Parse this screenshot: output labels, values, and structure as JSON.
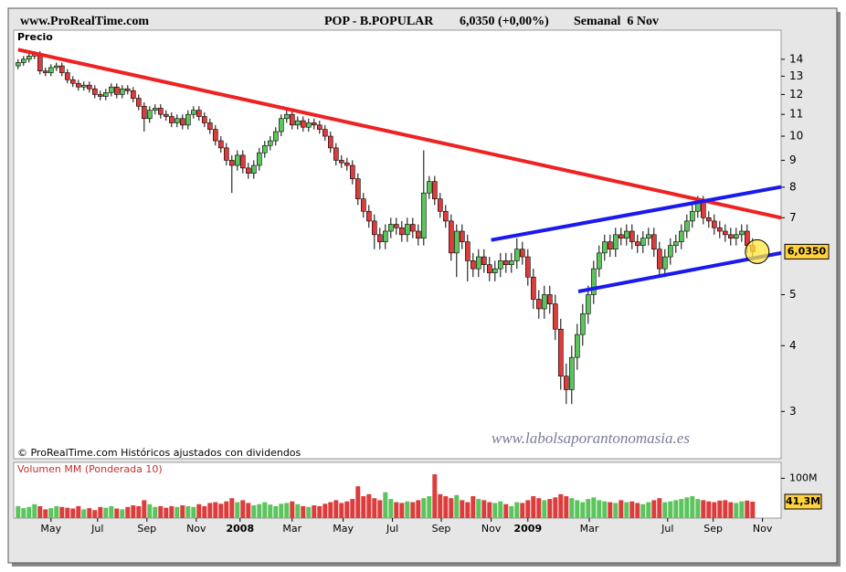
{
  "header": {
    "site": "www.ProRealTime.com",
    "instrument": "POP - B.POPULAR",
    "quote": "6,0350 (+0,00%)",
    "period": "Semanal  6 Nov"
  },
  "chart_data": [
    {
      "type": "candlestick",
      "label": "Precio",
      "credit": "© ProRealTime.com  Históricos ajustados con dividendos",
      "watermark": "www.labolsaporantonomasia.es",
      "open": [
        13.6,
        13.8,
        14.0,
        14.2,
        14.3,
        13.3,
        13.2,
        13.5,
        13.6,
        13.2,
        12.8,
        12.6,
        12.4,
        12.5,
        12.3,
        12.0,
        11.9,
        12.1,
        12.4,
        12.0,
        12.3,
        12.2,
        11.8,
        11.4,
        10.8,
        11.2,
        11.3,
        11.0,
        10.9,
        10.6,
        10.8,
        10.5,
        11.0,
        11.2,
        10.9,
        10.6,
        10.3,
        9.8,
        9.5,
        9.0,
        8.8,
        9.2,
        8.7,
        8.5,
        8.8,
        9.3,
        9.6,
        9.8,
        10.2,
        10.8,
        11.0,
        10.5,
        10.7,
        10.4,
        10.6,
        10.5,
        10.3,
        10.0,
        9.5,
        9.0,
        8.9,
        8.8,
        8.3,
        7.6,
        7.2,
        6.9,
        6.5,
        6.3,
        6.6,
        6.8,
        6.7,
        6.5,
        6.8,
        6.6,
        6.4,
        7.8,
        8.2,
        7.6,
        7.2,
        6.9,
        6.0,
        6.6,
        6.3,
        5.8,
        5.6,
        5.9,
        5.7,
        5.5,
        5.6,
        5.8,
        5.7,
        5.8,
        6.1,
        5.9,
        5.4,
        4.9,
        4.7,
        5.0,
        4.8,
        4.3,
        3.5,
        3.3,
        3.8,
        4.2,
        4.6,
        5.0,
        5.6,
        6.0,
        6.3,
        6.1,
        6.5,
        6.4,
        6.6,
        6.3,
        6.2,
        6.4,
        6.5,
        6.1,
        5.6,
        5.9,
        6.2,
        6.3,
        6.6,
        6.9,
        7.2,
        7.5,
        7.0,
        6.9,
        6.7,
        6.6,
        6.5,
        6.4,
        6.5,
        6.6,
        6.2
      ],
      "high": [
        14.0,
        14.2,
        14.4,
        14.5,
        14.5,
        13.5,
        13.7,
        13.8,
        13.8,
        13.4,
        13.0,
        12.8,
        12.7,
        12.7,
        12.5,
        12.2,
        12.3,
        12.6,
        12.6,
        12.5,
        12.5,
        12.4,
        12.0,
        11.6,
        11.4,
        11.5,
        11.5,
        11.2,
        11.1,
        11.0,
        11.0,
        11.2,
        11.4,
        11.4,
        11.1,
        10.8,
        10.5,
        10.0,
        9.7,
        9.2,
        9.4,
        9.4,
        8.9,
        9.0,
        9.5,
        9.8,
        10.0,
        10.4,
        11.0,
        11.2,
        11.2,
        10.9,
        10.9,
        10.8,
        10.8,
        10.7,
        10.5,
        10.2,
        9.7,
        9.2,
        9.1,
        9.0,
        8.5,
        7.8,
        7.4,
        7.1,
        6.7,
        6.8,
        7.0,
        7.0,
        6.9,
        7.0,
        7.0,
        6.8,
        9.4,
        8.4,
        8.4,
        7.8,
        7.4,
        7.1,
        6.8,
        6.8,
        6.5,
        6.0,
        6.1,
        6.1,
        5.9,
        5.8,
        6.0,
        6.0,
        6.0,
        6.4,
        6.3,
        6.1,
        5.6,
        5.1,
        5.2,
        5.2,
        5.0,
        4.5,
        3.7,
        4.0,
        4.4,
        4.8,
        5.2,
        5.8,
        6.2,
        6.5,
        6.5,
        6.7,
        6.7,
        6.8,
        6.8,
        6.5,
        6.6,
        6.7,
        6.7,
        6.3,
        6.1,
        6.4,
        6.5,
        6.8,
        7.1,
        7.4,
        7.7,
        7.7,
        7.2,
        7.1,
        6.9,
        6.8,
        6.7,
        6.7,
        6.8,
        6.8,
        6.4
      ],
      "low": [
        13.4,
        13.6,
        13.8,
        14.0,
        13.1,
        13.0,
        13.0,
        13.3,
        13.0,
        12.6,
        12.4,
        12.2,
        12.2,
        12.1,
        11.8,
        11.7,
        11.7,
        11.9,
        11.8,
        11.8,
        12.0,
        11.6,
        11.2,
        10.2,
        10.6,
        11.0,
        10.8,
        10.7,
        10.4,
        10.4,
        10.3,
        10.3,
        10.8,
        10.7,
        10.4,
        10.1,
        9.6,
        9.3,
        8.8,
        7.8,
        8.6,
        8.5,
        8.3,
        8.3,
        8.6,
        9.1,
        9.4,
        9.6,
        10.0,
        10.6,
        10.3,
        10.3,
        10.2,
        10.2,
        10.3,
        10.1,
        9.8,
        9.3,
        8.8,
        8.7,
        8.6,
        8.1,
        7.4,
        7.0,
        6.7,
        6.1,
        6.1,
        6.1,
        6.4,
        6.5,
        6.3,
        6.3,
        6.4,
        6.2,
        6.2,
        7.6,
        7.4,
        7.0,
        6.7,
        5.8,
        5.4,
        6.1,
        5.3,
        5.4,
        5.4,
        5.5,
        5.3,
        5.3,
        5.4,
        5.5,
        5.5,
        5.6,
        5.7,
        5.2,
        4.7,
        4.5,
        4.5,
        4.6,
        4.1,
        3.3,
        3.1,
        3.1,
        3.6,
        4.0,
        4.4,
        4.8,
        5.4,
        5.8,
        5.9,
        5.9,
        6.2,
        6.2,
        6.1,
        6.0,
        6.0,
        6.2,
        5.9,
        5.4,
        5.4,
        5.7,
        6.0,
        6.1,
        6.4,
        6.7,
        7.0,
        6.8,
        6.7,
        6.5,
        6.4,
        6.3,
        6.2,
        6.2,
        6.3,
        6.0,
        5.85
      ],
      "close": [
        13.8,
        14.0,
        14.2,
        14.3,
        13.3,
        13.2,
        13.5,
        13.6,
        13.2,
        12.8,
        12.6,
        12.4,
        12.5,
        12.3,
        12.0,
        11.9,
        12.1,
        12.4,
        12.0,
        12.3,
        12.2,
        11.8,
        11.4,
        10.8,
        11.2,
        11.3,
        11.0,
        10.9,
        10.6,
        10.8,
        10.5,
        11.0,
        11.2,
        10.9,
        10.6,
        10.3,
        9.8,
        9.5,
        9.0,
        8.8,
        9.2,
        8.7,
        8.5,
        8.8,
        9.3,
        9.6,
        9.8,
        10.2,
        10.8,
        11.0,
        10.5,
        10.7,
        10.4,
        10.6,
        10.5,
        10.3,
        10.0,
        9.5,
        9.0,
        8.9,
        8.8,
        8.3,
        7.6,
        7.2,
        6.9,
        6.5,
        6.3,
        6.6,
        6.8,
        6.7,
        6.5,
        6.8,
        6.6,
        6.4,
        7.8,
        8.2,
        7.6,
        7.2,
        6.9,
        6.0,
        6.6,
        6.3,
        5.8,
        5.6,
        5.9,
        5.7,
        5.5,
        5.6,
        5.8,
        5.7,
        5.8,
        6.1,
        5.9,
        5.4,
        4.9,
        4.7,
        5.0,
        4.8,
        4.3,
        3.5,
        3.3,
        3.8,
        4.2,
        4.6,
        5.0,
        5.6,
        6.0,
        6.3,
        6.1,
        6.5,
        6.4,
        6.6,
        6.3,
        6.2,
        6.4,
        6.5,
        6.1,
        5.6,
        5.9,
        6.2,
        6.3,
        6.6,
        6.9,
        7.2,
        7.5,
        7.0,
        6.9,
        6.7,
        6.6,
        6.5,
        6.4,
        6.5,
        6.6,
        6.2,
        6.035
      ],
      "up_color": "#5cc45c",
      "down_color": "#dd3c3c",
      "log_scale": true,
      "xlim": [
        -0.8,
        139.2
      ],
      "ylim": [
        2.44,
        15.9
      ],
      "yticks": [
        3,
        4,
        5,
        7,
        8,
        9,
        10,
        11,
        12,
        13,
        14
      ],
      "last_label": "6,0350",
      "xticks": [
        {
          "value": 6,
          "label": "May"
        },
        {
          "value": 14.5,
          "label": "Jul"
        },
        {
          "value": 23.5,
          "label": "Sep"
        },
        {
          "value": 32.5,
          "label": "Nov"
        },
        {
          "value": 40.5,
          "label": "2008"
        },
        {
          "value": 50,
          "label": "Mar"
        },
        {
          "value": 59.3,
          "label": "May"
        },
        {
          "value": 68.3,
          "label": "Jul"
        },
        {
          "value": 77.2,
          "label": "Sep"
        },
        {
          "value": 86.3,
          "label": "Nov"
        },
        {
          "value": 93,
          "label": "2009"
        },
        {
          "value": 104.2,
          "label": "Mar"
        },
        {
          "value": 118.5,
          "label": "Jul"
        },
        {
          "value": 126.8,
          "label": "Sep"
        },
        {
          "value": 135.8,
          "label": "Nov"
        }
      ],
      "trendlines": [
        {
          "start": [
            0,
            14.6
          ],
          "end": [
            139.2,
            7.0
          ],
          "color": "#ee2222"
        },
        {
          "start": [
            86.3,
            6.35
          ],
          "end": [
            139.2,
            8.01
          ],
          "color": "#1a1aee"
        },
        {
          "start": [
            102.2,
            5.07
          ],
          "end": [
            139.2,
            6.0
          ],
          "color": "#1a1aee"
        }
      ]
    },
    {
      "type": "volume",
      "label": "Volumen MM (Ponderada 10)",
      "values": [
        30,
        25,
        28,
        35,
        30,
        22,
        25,
        30,
        28,
        26,
        24,
        30,
        22,
        25,
        20,
        28,
        26,
        30,
        24,
        22,
        28,
        32,
        30,
        45,
        35,
        28,
        30,
        26,
        30,
        28,
        32,
        30,
        28,
        35,
        30,
        38,
        40,
        36,
        42,
        50,
        40,
        45,
        38,
        32,
        35,
        40,
        34,
        30,
        36,
        38,
        42,
        35,
        30,
        28,
        32,
        30,
        36,
        40,
        45,
        38,
        42,
        48,
        80,
        55,
        60,
        50,
        45,
        65,
        48,
        40,
        38,
        42,
        40,
        45,
        50,
        55,
        110,
        60,
        55,
        50,
        58,
        45,
        40,
        55,
        48,
        45,
        40,
        38,
        42,
        35,
        30,
        40,
        38,
        45,
        55,
        50,
        45,
        48,
        52,
        60,
        55,
        50,
        45,
        40,
        48,
        52,
        45,
        42,
        40,
        38,
        45,
        40,
        42,
        38,
        35,
        40,
        45,
        50,
        40,
        42,
        45,
        48,
        52,
        55,
        48,
        45,
        42,
        40,
        44,
        45,
        40,
        38,
        42,
        44,
        41.3
      ],
      "ylim": [
        0,
        140
      ],
      "yticks": [
        {
          "value": 100,
          "label": "100M"
        }
      ],
      "last_label": "41,3M"
    }
  ]
}
